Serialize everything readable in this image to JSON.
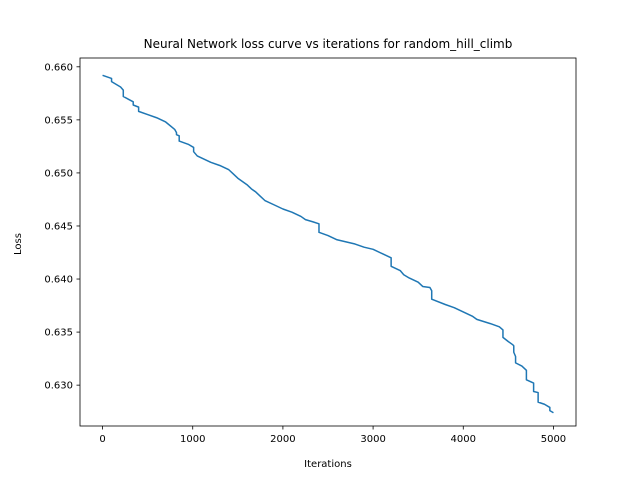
{
  "chart_data": {
    "type": "line",
    "title": "Neural Network loss curve vs iterations for random_hill_climb",
    "xlabel": "Iterations",
    "ylabel": "Loss",
    "xlim": [
      -250,
      5250
    ],
    "ylim": [
      0.62615,
      0.66083
    ],
    "xticks": [
      0,
      1000,
      2000,
      3000,
      4000,
      5000
    ],
    "yticks": [
      0.63,
      0.635,
      0.64,
      0.645,
      0.65,
      0.655,
      0.66
    ],
    "xtick_labels": [
      "0",
      "1000",
      "2000",
      "3000",
      "4000",
      "5000"
    ],
    "ytick_labels": [
      "0.630",
      "0.635",
      "0.640",
      "0.645",
      "0.650",
      "0.655",
      "0.660"
    ],
    "grid": false,
    "legend": "none",
    "series": [
      {
        "color": "#1f77b4",
        "points": [
          [
            0,
            0.6592
          ],
          [
            100,
            0.6589
          ],
          [
            100,
            0.6586
          ],
          [
            200,
            0.6581
          ],
          [
            230,
            0.6578
          ],
          [
            230,
            0.6572
          ],
          [
            340,
            0.6567
          ],
          [
            340,
            0.6564
          ],
          [
            400,
            0.6562
          ],
          [
            400,
            0.6558
          ],
          [
            500,
            0.6555
          ],
          [
            600,
            0.6552
          ],
          [
            700,
            0.6548
          ],
          [
            800,
            0.6541
          ],
          [
            820,
            0.6538
          ],
          [
            820,
            0.6536
          ],
          [
            850,
            0.6535
          ],
          [
            850,
            0.653
          ],
          [
            950,
            0.6527
          ],
          [
            1010,
            0.6524
          ],
          [
            1010,
            0.652
          ],
          [
            1050,
            0.6516
          ],
          [
            1100,
            0.6514
          ],
          [
            1200,
            0.651
          ],
          [
            1300,
            0.6507
          ],
          [
            1400,
            0.6503
          ],
          [
            1450,
            0.6499
          ],
          [
            1500,
            0.6495
          ],
          [
            1600,
            0.6489
          ],
          [
            1650,
            0.6485
          ],
          [
            1700,
            0.6482
          ],
          [
            1750,
            0.6478
          ],
          [
            1800,
            0.6474
          ],
          [
            1900,
            0.647
          ],
          [
            2000,
            0.6466
          ],
          [
            2100,
            0.6463
          ],
          [
            2200,
            0.6459
          ],
          [
            2250,
            0.6456
          ],
          [
            2330,
            0.6454
          ],
          [
            2400,
            0.6452
          ],
          [
            2400,
            0.6444
          ],
          [
            2500,
            0.6441
          ],
          [
            2600,
            0.6437
          ],
          [
            2800,
            0.6433
          ],
          [
            2900,
            0.643
          ],
          [
            3000,
            0.6428
          ],
          [
            3100,
            0.6424
          ],
          [
            3200,
            0.642
          ],
          [
            3200,
            0.6412
          ],
          [
            3300,
            0.6408
          ],
          [
            3340,
            0.6404
          ],
          [
            3400,
            0.6401
          ],
          [
            3500,
            0.6397
          ],
          [
            3550,
            0.6393
          ],
          [
            3630,
            0.6392
          ],
          [
            3650,
            0.6389
          ],
          [
            3650,
            0.6381
          ],
          [
            3800,
            0.6376
          ],
          [
            3900,
            0.6373
          ],
          [
            4000,
            0.6369
          ],
          [
            4100,
            0.6365
          ],
          [
            4150,
            0.6362
          ],
          [
            4300,
            0.6358
          ],
          [
            4400,
            0.6355
          ],
          [
            4440,
            0.6352
          ],
          [
            4440,
            0.6345
          ],
          [
            4500,
            0.6341
          ],
          [
            4550,
            0.6338
          ],
          [
            4560,
            0.6337
          ],
          [
            4560,
            0.6331
          ],
          [
            4580,
            0.6327
          ],
          [
            4580,
            0.6321
          ],
          [
            4650,
            0.6318
          ],
          [
            4700,
            0.6314
          ],
          [
            4700,
            0.6305
          ],
          [
            4780,
            0.6302
          ],
          [
            4780,
            0.6294
          ],
          [
            4830,
            0.6293
          ],
          [
            4830,
            0.6284
          ],
          [
            4900,
            0.6282
          ],
          [
            4960,
            0.6279
          ],
          [
            4960,
            0.6276
          ],
          [
            5000,
            0.6274
          ]
        ]
      }
    ]
  }
}
